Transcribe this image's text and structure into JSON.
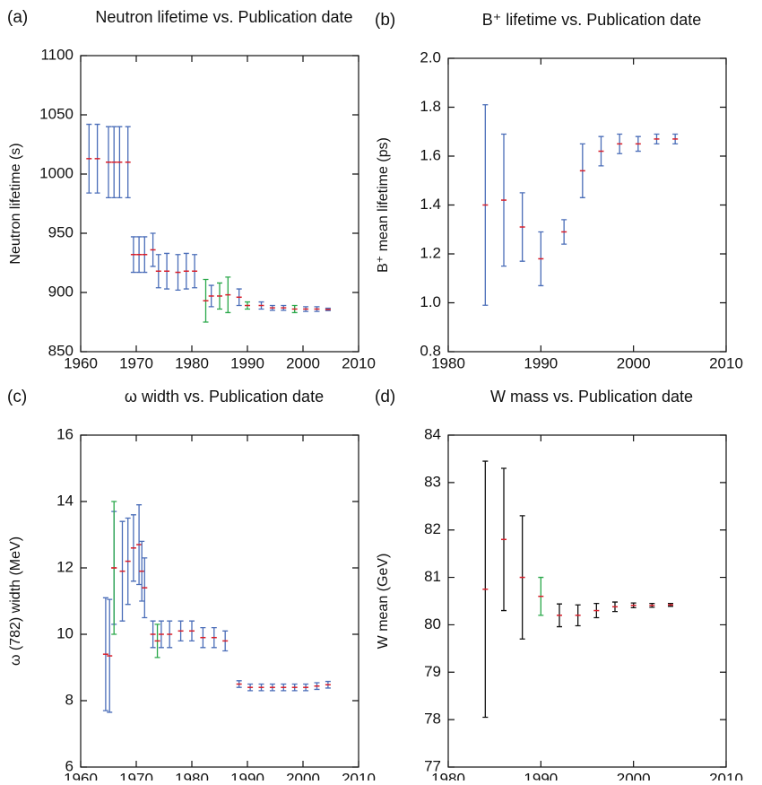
{
  "chart_data": [
    {
      "type": "errorbar",
      "panel": "(a)",
      "title": "Neutron lifetime vs. Publication date",
      "ylabel": "Neutron lifetime (s)",
      "xlim": [
        1960,
        2010
      ],
      "xticks": [
        1960,
        1970,
        1980,
        1990,
        2000,
        2010
      ],
      "ylim": [
        850,
        1100
      ],
      "yticks": [
        850,
        900,
        950,
        1000,
        1050,
        1100
      ],
      "marker_color": "#d8202c",
      "series": [
        {
          "color": "#4a6db8",
          "x": [
            1961.5,
            1963,
            1965,
            1966,
            1967,
            1968.5,
            1969.5,
            1970.5,
            1971.5,
            1973,
            1974,
            1975.5,
            1977.5,
            1979,
            1980.5,
            1983.5,
            1988.5,
            1992.5,
            1994.5,
            1996.5,
            2000.5,
            2002.5,
            2004.5
          ],
          "values": [
            1013,
            1013,
            1010,
            1010,
            1010,
            1010,
            932,
            932,
            932,
            936,
            918,
            918,
            917,
            918,
            918,
            897,
            896,
            889,
            887,
            887,
            886,
            886,
            885.7
          ],
          "errors": [
            29,
            29,
            30,
            30,
            30,
            30,
            15,
            15,
            15,
            14,
            14,
            15,
            15,
            15,
            14,
            9,
            7,
            3,
            2,
            2,
            2,
            2,
            1
          ]
        },
        {
          "color": "#2aa84a",
          "x": [
            1982.5,
            1985,
            1986.5,
            1990,
            1998.5
          ],
          "values": [
            893,
            897,
            898,
            889,
            886
          ],
          "errors": [
            18,
            11,
            15,
            3,
            3
          ]
        }
      ]
    },
    {
      "type": "errorbar",
      "panel": "(b)",
      "title": "B⁺ lifetime vs. Publication date",
      "ylabel": "B⁺ mean lifetime (ps)",
      "xlim": [
        1980,
        2010
      ],
      "xticks": [
        1980,
        1990,
        2000,
        2010
      ],
      "ylim": [
        0.8,
        2.0
      ],
      "yticks": [
        0.8,
        {
          "value": 1,
          "label": "1.0"
        },
        1.2,
        1.4,
        1.6,
        1.8,
        {
          "value": 2,
          "label": "2.0"
        }
      ],
      "marker_color": "#d8202c",
      "series": [
        {
          "color": "#4a6db8",
          "x": [
            1984,
            1986,
            1988,
            1990,
            1992.5,
            1994.5,
            1996.5,
            1998.5,
            2000.5,
            2002.5,
            2004.5
          ],
          "values": [
            1.4,
            1.42,
            1.31,
            1.18,
            1.29,
            1.54,
            1.62,
            1.65,
            1.65,
            1.67,
            1.67
          ],
          "errors": [
            0.41,
            0.27,
            0.14,
            0.11,
            0.05,
            0.11,
            0.06,
            0.04,
            0.03,
            0.02,
            0.02
          ]
        }
      ]
    },
    {
      "type": "errorbar",
      "panel": "(c)",
      "title": "ω width vs. Publication date",
      "ylabel": "ω (782) width (MeV)",
      "xlim": [
        1960,
        2010
      ],
      "xticks": [
        1960,
        1970,
        1980,
        1990,
        2000,
        2010
      ],
      "ylim": [
        6,
        16
      ],
      "yticks": [
        6,
        8,
        10,
        12,
        14,
        16
      ],
      "marker_color": "#d8202c",
      "series": [
        {
          "color": "#4a6db8",
          "x": [
            1964.5,
            1965.2,
            1966,
            1967.5,
            1968.5,
            1969.5,
            1970.5,
            1971,
            1971.5,
            1973,
            1974.5,
            1976,
            1978,
            1980,
            1982,
            1984,
            1986,
            1988.5,
            1990.5,
            1992.5,
            1994.5,
            1996.5,
            1998.5,
            2000.5,
            2002.5,
            2004.5
          ],
          "values": [
            9.4,
            9.35,
            12.0,
            11.9,
            12.2,
            12.6,
            12.7,
            11.9,
            11.4,
            10.0,
            10.0,
            10.0,
            10.1,
            10.1,
            9.9,
            9.9,
            9.8,
            8.5,
            8.4,
            8.4,
            8.4,
            8.4,
            8.4,
            8.4,
            8.44,
            8.48
          ],
          "errors": [
            1.7,
            1.7,
            1.7,
            1.5,
            1.3,
            1.0,
            1.2,
            0.9,
            0.9,
            0.4,
            0.4,
            0.4,
            0.3,
            0.3,
            0.3,
            0.3,
            0.3,
            0.1,
            0.1,
            0.1,
            0.1,
            0.1,
            0.1,
            0.1,
            0.1,
            0.1
          ]
        },
        {
          "color": "#2aa84a",
          "x": [
            1966,
            1973.8
          ],
          "values": [
            12.0,
            9.8
          ],
          "errors": [
            2.0,
            0.5
          ]
        }
      ]
    },
    {
      "type": "errorbar",
      "panel": "(d)",
      "title": "W mass vs. Publication date",
      "ylabel": "W mean (GeV)",
      "xlim": [
        1980,
        2010
      ],
      "xticks": [
        1980,
        1990,
        2000,
        2010
      ],
      "ylim": [
        77,
        84
      ],
      "yticks": [
        77,
        78,
        79,
        80,
        81,
        82,
        83,
        84
      ],
      "marker_color": "#d8202c",
      "series": [
        {
          "color": "#111111",
          "x": [
            1984,
            1986,
            1988,
            1992,
            1994,
            1996,
            1998,
            2000,
            2002,
            2004
          ],
          "values": [
            80.75,
            81.8,
            81.0,
            80.2,
            80.2,
            80.3,
            80.38,
            80.41,
            80.41,
            80.42
          ],
          "errors": [
            2.7,
            1.5,
            1.3,
            0.24,
            0.22,
            0.15,
            0.1,
            0.05,
            0.04,
            0.03
          ]
        },
        {
          "color": "#2aa84a",
          "x": [
            1990
          ],
          "values": [
            80.6
          ],
          "errors": [
            0.4
          ]
        }
      ]
    }
  ]
}
